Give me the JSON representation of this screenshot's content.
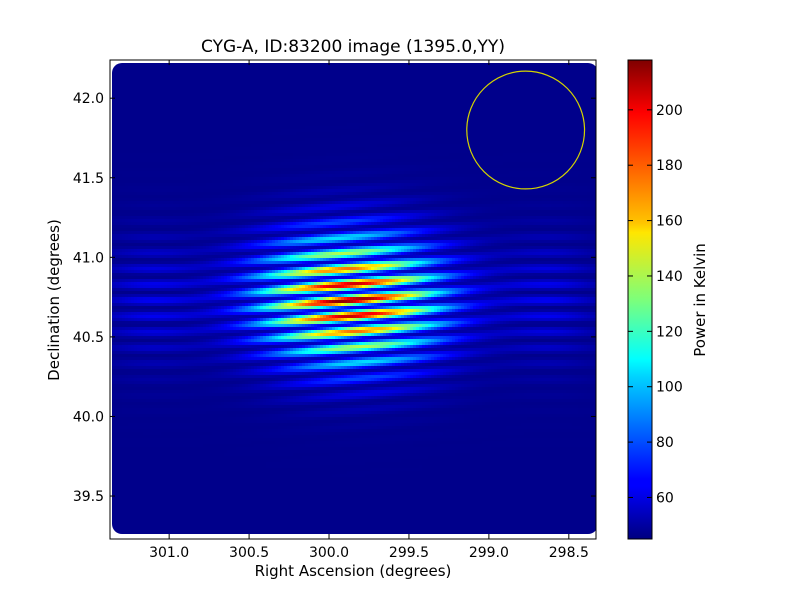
{
  "chart_data": {
    "type": "heatmap",
    "title": "CYG-A, ID:83200 image (1395.0,YY)",
    "xlabel": "Right Ascension (degrees)",
    "ylabel": "Declination (degrees)",
    "xlim": [
      301.37,
      298.33
    ],
    "ylim": [
      39.23,
      42.24
    ],
    "xticks": [
      301.0,
      300.5,
      300.0,
      299.5,
      299.0,
      298.5
    ],
    "xtick_labels": [
      "301.0",
      "300.5",
      "300.0",
      "299.5",
      "299.0",
      "298.5"
    ],
    "yticks": [
      39.5,
      40.0,
      40.5,
      41.0,
      41.5,
      42.0
    ],
    "ytick_labels": [
      "39.5",
      "40.0",
      "40.5",
      "41.0",
      "41.5",
      "42.0"
    ],
    "colorbar": {
      "label": "Power in Kelvin",
      "min": 45,
      "max": 218,
      "ticks": [
        60,
        80,
        100,
        120,
        140,
        160,
        180,
        200
      ],
      "tick_labels": [
        "60",
        "80",
        "100",
        "120",
        "140",
        "160",
        "180",
        "200"
      ],
      "colormap": "jet"
    },
    "source": {
      "ra_center": 299.87,
      "dec_center": 40.73,
      "peak_kelvin": 218,
      "background_kelvin": 47,
      "fringe_period_dec": 0.1
    },
    "beam_circle": {
      "ra_center": 298.77,
      "dec_center": 41.8,
      "radius_dec": 0.37,
      "color": "#d4d400"
    },
    "grid": false,
    "legend": "none"
  }
}
